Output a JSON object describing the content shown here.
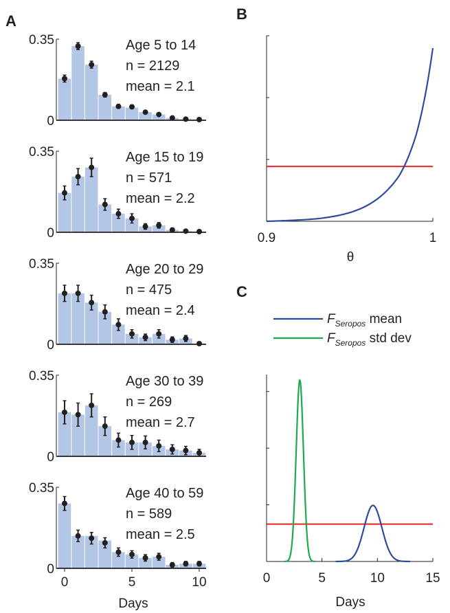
{
  "panels": {
    "a": "A",
    "b": "B",
    "c": "C"
  },
  "chart_data": [
    {
      "type": "bar",
      "panel": "A",
      "xlabel": "Days",
      "x_ticks": [
        "0",
        "5",
        "10"
      ],
      "y_ticks": [
        "0",
        "0.35"
      ],
      "ylim": [
        0,
        0.35
      ],
      "categories": [
        0,
        1,
        2,
        3,
        4,
        5,
        6,
        7,
        8,
        9,
        10
      ],
      "grid": false,
      "subplots": [
        {
          "lines": [
            "Age 5 to 14",
            "n = 2129",
            "mean = 2.1"
          ],
          "bars": [
            0.18,
            0.32,
            0.24,
            0.11,
            0.06,
            0.055,
            0.035,
            0.025,
            0.01,
            0.005,
            0.003
          ],
          "points": [
            0.18,
            0.32,
            0.24,
            0.11,
            0.06,
            0.058,
            0.035,
            0.025,
            0.01,
            0.005,
            0.003
          ],
          "errors": [
            0.015,
            0.015,
            0.015,
            0.01,
            0.008,
            0.008,
            0.006,
            0.005,
            0.004,
            0.003,
            0.002
          ]
        },
        {
          "lines": [
            "Age 15 to 19",
            "n = 571",
            "mean = 2.2"
          ],
          "bars": [
            0.17,
            0.24,
            0.28,
            0.12,
            0.08,
            0.06,
            0.025,
            0.03,
            0.01,
            0.005,
            0.003
          ],
          "points": [
            0.17,
            0.24,
            0.28,
            0.12,
            0.08,
            0.06,
            0.025,
            0.03,
            0.01,
            0.005,
            0.003
          ],
          "errors": [
            0.03,
            0.035,
            0.04,
            0.025,
            0.02,
            0.02,
            0.012,
            0.012,
            0.008,
            0.005,
            0.004
          ]
        },
        {
          "lines": [
            "Age 20 to 29",
            "n = 475",
            "mean = 2.4"
          ],
          "bars": [
            0.22,
            0.22,
            0.18,
            0.14,
            0.085,
            0.045,
            0.03,
            0.045,
            0.02,
            0.025,
            0.003
          ],
          "points": [
            0.22,
            0.22,
            0.18,
            0.14,
            0.085,
            0.045,
            0.03,
            0.045,
            0.02,
            0.025,
            0.003
          ],
          "errors": [
            0.035,
            0.035,
            0.032,
            0.03,
            0.025,
            0.018,
            0.014,
            0.018,
            0.012,
            0.013,
            0.004
          ]
        },
        {
          "lines": [
            "Age 30 to 39",
            "n = 269",
            "mean = 2.7"
          ],
          "bars": [
            0.19,
            0.18,
            0.22,
            0.13,
            0.07,
            0.06,
            0.06,
            0.045,
            0.03,
            0.025,
            0.015
          ],
          "points": [
            0.19,
            0.18,
            0.22,
            0.13,
            0.07,
            0.06,
            0.06,
            0.045,
            0.03,
            0.025,
            0.015
          ],
          "errors": [
            0.05,
            0.05,
            0.05,
            0.04,
            0.03,
            0.03,
            0.028,
            0.025,
            0.02,
            0.018,
            0.015
          ]
        },
        {
          "lines": [
            "Age 40 to 59",
            "n = 589",
            "mean = 2.5"
          ],
          "bars": [
            0.28,
            0.14,
            0.14,
            0.12,
            0.07,
            0.06,
            0.045,
            0.05,
            0.015,
            0.02,
            0.02
          ],
          "points": [
            0.28,
            0.14,
            0.13,
            0.11,
            0.07,
            0.06,
            0.045,
            0.05,
            0.015,
            0.02,
            0.02
          ],
          "errors": [
            0.03,
            0.025,
            0.025,
            0.022,
            0.018,
            0.016,
            0.014,
            0.015,
            0.01,
            0.01,
            0.01
          ]
        }
      ]
    },
    {
      "type": "line",
      "panel": "B",
      "xlabel": "θ",
      "xlim": [
        0.9,
        1
      ],
      "x_ticks": [
        "0.9",
        "1"
      ],
      "ylim": [
        0,
        1
      ],
      "y_ticks_count": 3,
      "grid": false,
      "series": [
        {
          "color": "#2e4a9e",
          "x": [
            0.9,
            0.91,
            0.92,
            0.93,
            0.94,
            0.95,
            0.96,
            0.97,
            0.98,
            0.99,
            1.0
          ],
          "values": [
            0.0,
            0.003,
            0.007,
            0.013,
            0.025,
            0.045,
            0.08,
            0.14,
            0.24,
            0.45,
            0.9
          ]
        },
        {
          "color": "#e41e26",
          "x": [
            0.9,
            1.0
          ],
          "values": [
            0.285,
            0.285
          ]
        }
      ]
    },
    {
      "type": "line",
      "panel": "C",
      "xlabel": "Days",
      "xlim": [
        0,
        15
      ],
      "x_ticks": [
        "0",
        "5",
        "10",
        "15"
      ],
      "ylim": [
        0,
        1
      ],
      "y_ticks_count": 3,
      "grid": false,
      "legend_position": "top",
      "series": [
        {
          "name_main": "F",
          "name_sub": "Seropos",
          "name_suffix": " mean",
          "color": "#2e4a9e",
          "peak_x": 9.6,
          "peak_y": 0.3,
          "sd": 0.8
        },
        {
          "name_main": "F",
          "name_sub": "Seropos",
          "name_suffix": " std dev",
          "color": "#1aab4b",
          "peak_x": 3.0,
          "peak_y": 0.97,
          "sd": 0.33
        },
        {
          "color": "#e41e26",
          "x": [
            0,
            15
          ],
          "values": [
            0.2,
            0.2
          ]
        }
      ]
    }
  ]
}
